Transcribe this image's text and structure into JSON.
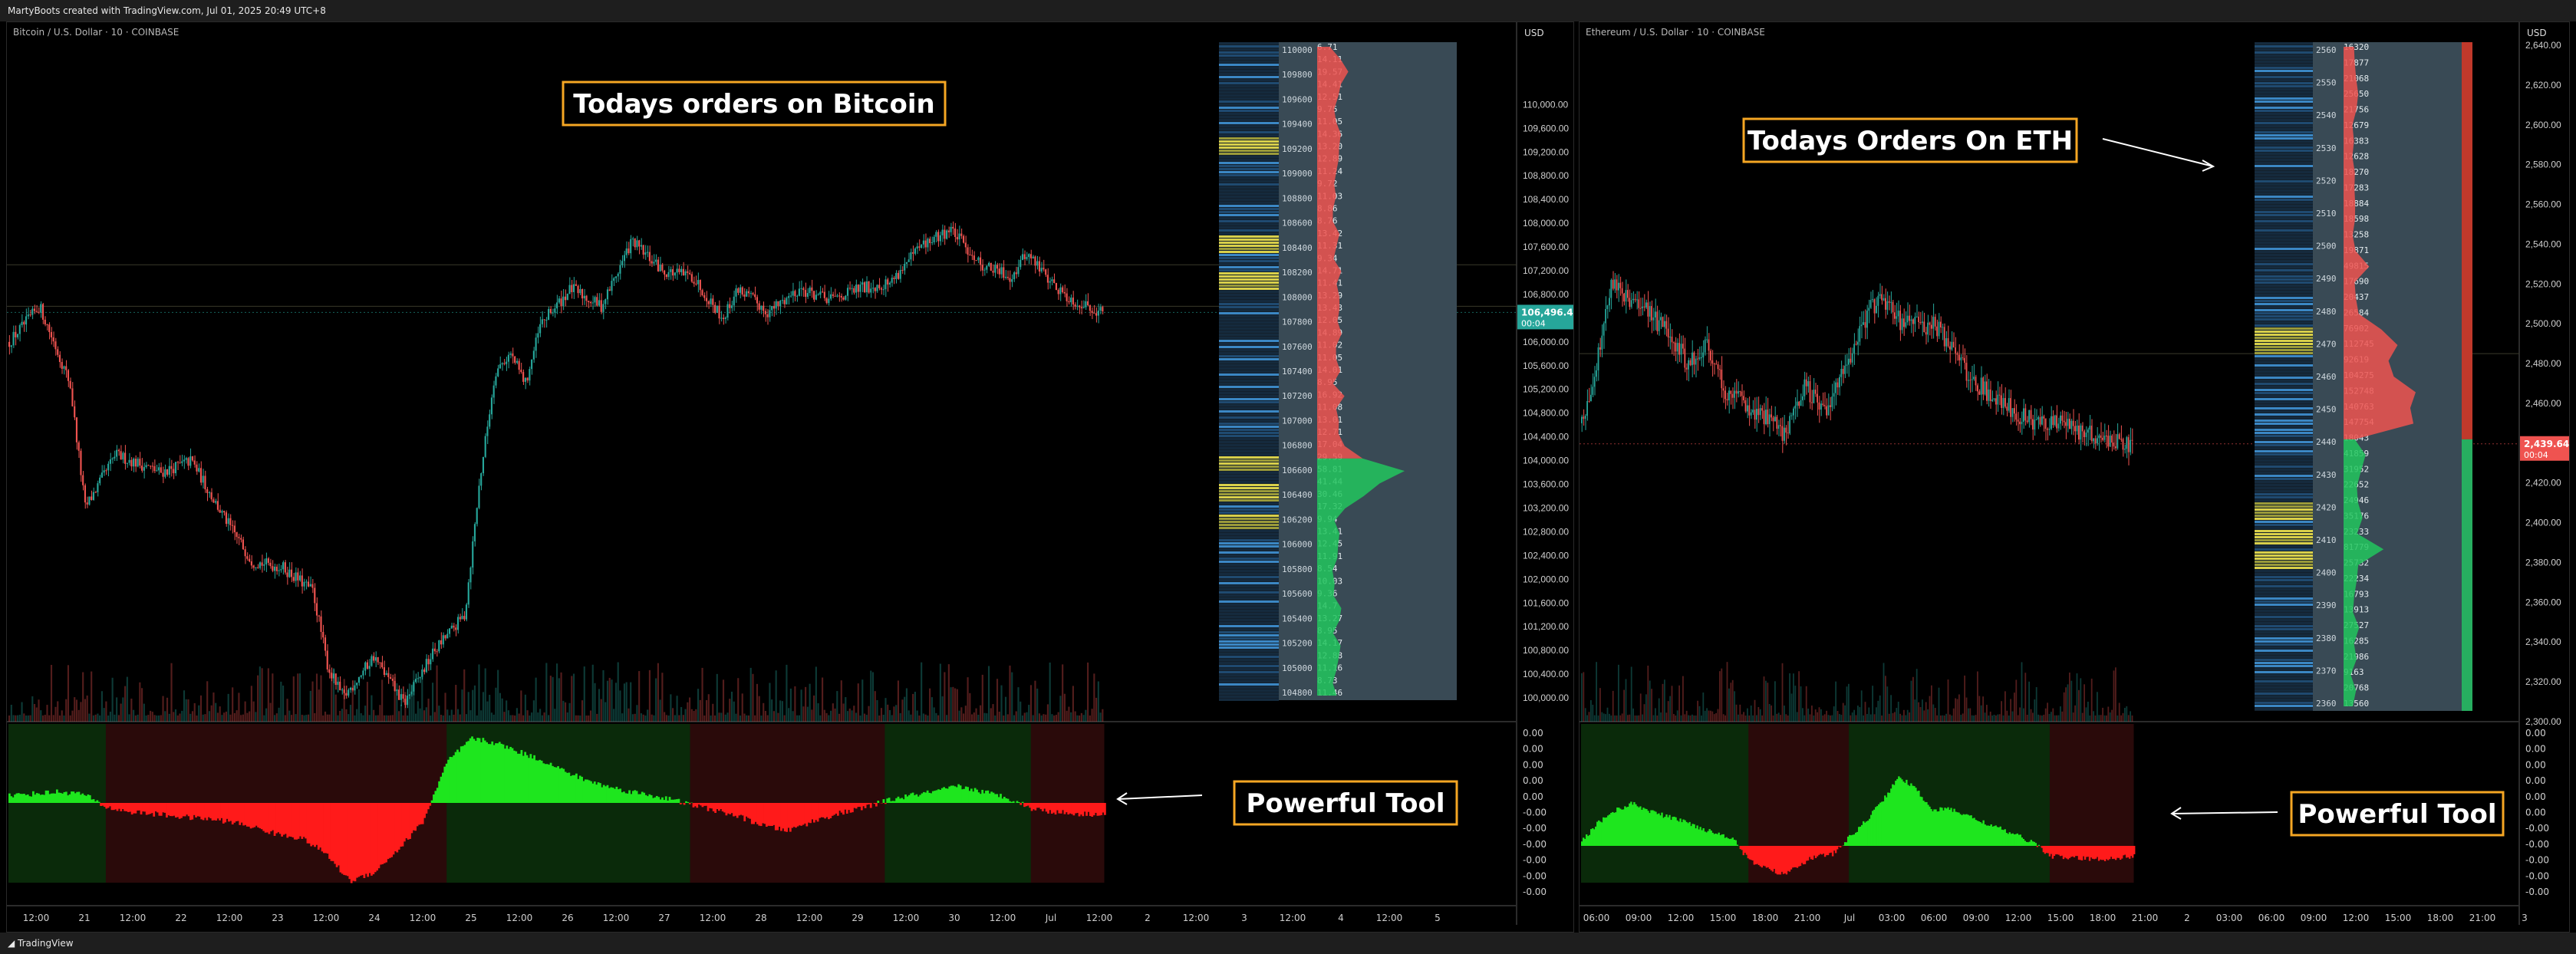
{
  "header": {
    "credit": "MartyBoots created with TradingView.com, Jul 01, 2025 20:49 UTC+8"
  },
  "footer": {
    "brand": "TradingView"
  },
  "colors": {
    "up": "#26a69a",
    "down": "#ef5350",
    "osc_up": "#1ee61e",
    "osc_down": "#ff1a1a",
    "callout_border": "#f5a623",
    "bg": "#000000"
  },
  "chart_data": [
    {
      "type": "candlestick",
      "symbol": "Bitcoin / U.S. Dollar · 10 · COINBASE",
      "currency": "USD",
      "annotation": "Todays orders on Bitcoin",
      "last_price": "106,496.47",
      "countdown": "00:04",
      "ylim": [
        99600,
        111000
      ],
      "y_ticks": [
        "110,000.00",
        "109,600.00",
        "109,200.00",
        "108,800.00",
        "108,400.00",
        "108,000.00",
        "107,600.00",
        "107,200.00",
        "106,800.00",
        "106,400.00",
        "106,000.00",
        "105,600.00",
        "105,200.00",
        "104,800.00",
        "104,400.00",
        "104,000.00",
        "103,600.00",
        "103,200.00",
        "102,800.00",
        "102,400.00",
        "102,000.00",
        "101,600.00",
        "101,200.00",
        "100,800.00",
        "100,400.00",
        "100,000.00"
      ],
      "price_path_x": [
        0,
        0.02,
        0.04,
        0.05,
        0.07,
        0.1,
        0.12,
        0.14,
        0.16,
        0.18,
        0.2,
        0.21,
        0.22,
        0.24,
        0.26,
        0.28,
        0.3,
        0.31,
        0.32,
        0.33,
        0.34,
        0.35,
        0.37,
        0.39,
        0.41,
        0.43,
        0.45,
        0.47,
        0.48,
        0.5,
        0.52,
        0.54,
        0.56,
        0.58,
        0.6,
        0.62,
        0.64,
        0.66,
        0.67,
        0.69,
        0.7,
        0.72
      ],
      "price_path_y": [
        106000,
        106600,
        105300,
        103200,
        104100,
        103800,
        104000,
        103100,
        102300,
        102200,
        101800,
        100500,
        100000,
        100700,
        99900,
        100800,
        101400,
        103700,
        105500,
        105800,
        105300,
        106300,
        106900,
        106600,
        107700,
        107200,
        107100,
        106400,
        106900,
        106500,
        106900,
        106700,
        106900,
        107000,
        107600,
        107900,
        107300,
        107100,
        107500,
        106900,
        106700,
        106500
      ],
      "orderbook_levels": [
        "110000",
        "109800",
        "109600",
        "109400",
        "109200",
        "109000",
        "108800",
        "108600",
        "108400",
        "108200",
        "108000",
        "107800",
        "107600",
        "107400",
        "107200",
        "107000",
        "106800",
        "106600",
        "106400",
        "106200",
        "106000",
        "105800",
        "105600",
        "105400",
        "105200",
        "105000",
        "104800"
      ],
      "orderbook_sizes": [
        "6.71",
        "14.11",
        "19.57",
        "14.41",
        "12.51",
        "9.75",
        "11.05",
        "14.36",
        "13.20",
        "12.89",
        "11.24",
        "9.72",
        "11.03",
        "8.86",
        "8.76",
        "13.42",
        "11.31",
        "9.34",
        "14.71",
        "11.41",
        "13.29",
        "13.43",
        "12.05",
        "14.89",
        "11.02",
        "11.05",
        "14.01",
        "8.95",
        "16.92",
        "11.08",
        "13.01",
        "12.71",
        "17.04",
        "29.59",
        "58.81",
        "41.44",
        "30.46",
        "17.32",
        "9.94",
        "13.41",
        "12.45",
        "11.91",
        "8.54",
        "10.03",
        "9.36",
        "14.7",
        "13.27",
        "8.95",
        "14.17",
        "12.88",
        "11.16",
        "8.73",
        "11.46"
      ],
      "osc_ticks": [
        "0.00",
        "0.00",
        "0.00",
        "0.00",
        "0.00",
        "-0.00",
        "-0.00",
        "-0.00",
        "-0.00",
        "-0.00",
        "-0.00"
      ],
      "osc_series": [
        0.08,
        0.1,
        0.12,
        0.1,
        -0.05,
        -0.1,
        -0.12,
        -0.15,
        -0.17,
        -0.2,
        -0.26,
        -0.34,
        -0.38,
        -0.55,
        -0.85,
        -0.75,
        -0.5,
        -0.2,
        0.45,
        0.7,
        0.65,
        0.55,
        0.45,
        0.32,
        0.22,
        0.15,
        0.1,
        0.05,
        -0.02,
        -0.08,
        -0.15,
        -0.25,
        -0.3,
        -0.2,
        -0.12,
        -0.06,
        0.02,
        0.08,
        0.12,
        0.18,
        0.12,
        0.06,
        -0.06,
        -0.1,
        -0.12,
        -0.12
      ],
      "osc_label": "Powerful Tool",
      "x_ticks": [
        "12:00",
        "21",
        "12:00",
        "22",
        "12:00",
        "23",
        "12:00",
        "24",
        "12:00",
        "25",
        "12:00",
        "26",
        "12:00",
        "27",
        "12:00",
        "28",
        "12:00",
        "29",
        "12:00",
        "30",
        "12:00",
        "Jul",
        "12:00",
        "2",
        "12:00",
        "3",
        "12:00",
        "4",
        "12:00",
        "5"
      ]
    },
    {
      "type": "candlestick",
      "symbol": "Ethereum / U.S. Dollar · 10 · COINBASE",
      "currency": "USD",
      "annotation": "Todays Orders On ETH",
      "last_price": "2,439.64",
      "countdown": "00:04",
      "ylim": [
        2300,
        2640
      ],
      "y_ticks": [
        "2,640.00",
        "2,620.00",
        "2,600.00",
        "2,580.00",
        "2,560.00",
        "2,540.00",
        "2,520.00",
        "2,500.00",
        "2,480.00",
        "2,460.00",
        "2,440.00",
        "2,420.00",
        "2,400.00",
        "2,380.00",
        "2,360.00",
        "2,340.00",
        "2,320.00",
        "2,300.00"
      ],
      "price_path_x": [
        0,
        0.02,
        0.03,
        0.05,
        0.07,
        0.09,
        0.11,
        0.13,
        0.15,
        0.17,
        0.19,
        0.21,
        0.23,
        0.25,
        0.27,
        0.29,
        0.31,
        0.33,
        0.35,
        0.37,
        0.39,
        0.41,
        0.43,
        0.45,
        0.47,
        0.49,
        0.51,
        0.53,
        0.55,
        0.57
      ],
      "price_path_y": [
        2450,
        2490,
        2520,
        2510,
        2505,
        2495,
        2480,
        2490,
        2465,
        2460,
        2452,
        2445,
        2470,
        2455,
        2475,
        2500,
        2515,
        2500,
        2500,
        2498,
        2480,
        2470,
        2462,
        2455,
        2450,
        2452,
        2448,
        2443,
        2442,
        2439
      ],
      "orderbook_levels": [
        "2560",
        "2550",
        "2540",
        "2530",
        "2520",
        "2510",
        "2500",
        "2490",
        "2480",
        "2470",
        "2460",
        "2450",
        "2440",
        "2430",
        "2420",
        "2410",
        "2400",
        "2390",
        "2380",
        "2370",
        "2360"
      ],
      "orderbook_sizes": [
        "16320",
        "17877",
        "21068",
        "25650",
        "21756",
        "12679",
        "16383",
        "12628",
        "18270",
        "17283",
        "18884",
        "18598",
        "13258",
        "19871",
        "49815",
        "17690",
        "20437",
        "26584",
        "76902",
        "112745",
        "92619",
        "104275",
        "152748",
        "140763",
        "147754",
        "18043",
        "41859",
        "31952",
        "22652",
        "24946",
        "35176",
        "23233",
        "81779",
        "25732",
        "22234",
        "16793",
        "13913",
        "27527",
        "16285",
        "21986",
        "9163",
        "20768",
        "13560"
      ],
      "osc_ticks": [
        "0.00",
        "0.00",
        "0.00",
        "0.00",
        "0.00",
        "0.00",
        "-0.00",
        "-0.00",
        "-0.00",
        "-0.00",
        "-0.00"
      ],
      "osc_series": [
        0.05,
        0.28,
        0.42,
        0.5,
        0.42,
        0.35,
        0.3,
        0.22,
        0.15,
        0.1,
        -0.18,
        -0.26,
        -0.34,
        -0.22,
        -0.12,
        -0.1,
        0.1,
        0.3,
        0.55,
        0.82,
        0.66,
        0.42,
        0.44,
        0.36,
        0.28,
        0.2,
        0.12,
        0.04,
        -0.12,
        -0.14,
        -0.15,
        -0.16,
        -0.14,
        -0.12
      ],
      "osc_label": "Powerful Tool",
      "x_ticks": [
        "06:00",
        "09:00",
        "12:00",
        "15:00",
        "18:00",
        "21:00",
        "Jul",
        "03:00",
        "06:00",
        "09:00",
        "12:00",
        "15:00",
        "18:00",
        "21:00",
        "2",
        "03:00",
        "06:00",
        "09:00",
        "12:00",
        "15:00",
        "18:00",
        "21:00",
        "3"
      ]
    }
  ]
}
